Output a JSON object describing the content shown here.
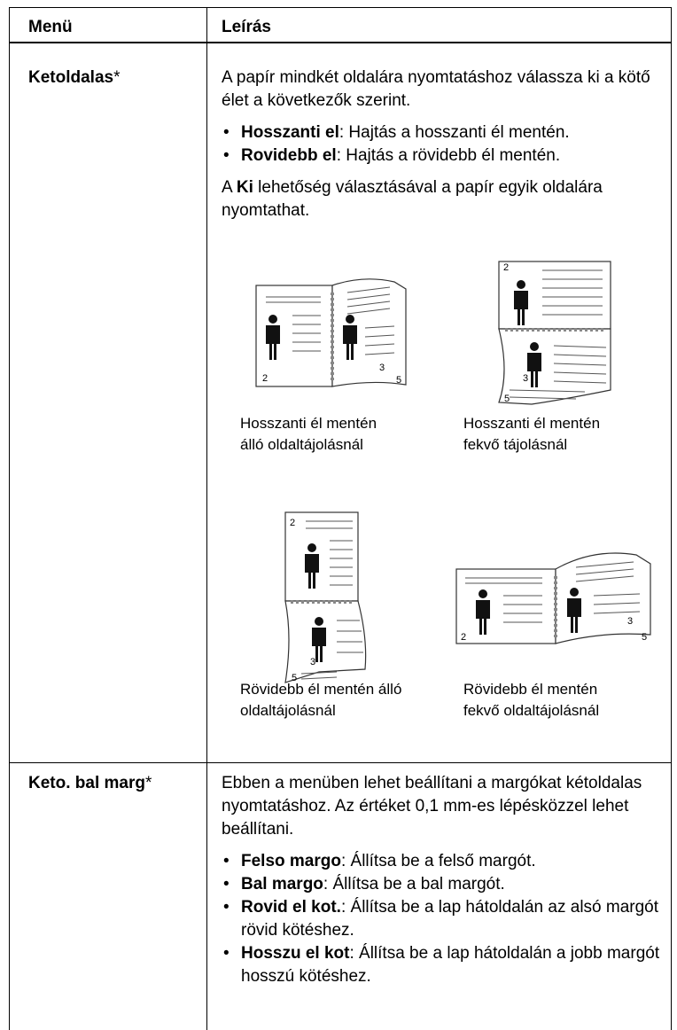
{
  "table": {
    "header": [
      "Menü",
      "Leírás"
    ],
    "rows": [
      {
        "menu": "Ketoldalas",
        "menu_mark": "*",
        "intro": "A papír mindkét oldalára nyomtatáshoz válassza ki a kötő élet a következők szerint.",
        "options": [
          {
            "term": "Hosszanti el",
            "text": ": Hajtás a hosszanti él mentén."
          },
          {
            "term": "Rovidebb el",
            "text": ": Hajtás a rövidebb él mentén."
          }
        ],
        "note": [
          "A ",
          "Ki",
          " lehetőség választásával a papír egyik oldalára nyomtathat."
        ],
        "figures": [
          {
            "caption": "Hosszanti él mentén álló oldaltájolásnál",
            "numbers": [
              "2",
              "3",
              "5"
            ]
          },
          {
            "caption": "Hosszanti él mentén fekvő tájolásnál",
            "numbers": [
              "2",
              "3",
              "5"
            ]
          },
          {
            "caption": "Rövidebb él mentén álló oldaltájolásnál",
            "numbers": [
              "2",
              "3",
              "5"
            ]
          },
          {
            "caption": "Rövidebb él mentén fekvő oldaltájolásnál",
            "numbers": [
              "2",
              "3",
              "5"
            ]
          }
        ]
      },
      {
        "menu": "Keto. bal marg",
        "menu_mark": "*",
        "intro": "Ebben a menüben lehet beállítani a margókat kétoldalas nyomtatáshoz. Az értéket 0,1 mm-es lépésközzel lehet beállítani.",
        "options": [
          {
            "term": "Felso margo",
            "text": ": Állítsa be a felső margót."
          },
          {
            "term": "Bal margo",
            "text": ": Állítsa be a bal margót."
          },
          {
            "term": "Rovid el kot.",
            "text": ": Állítsa be a lap hátoldalán az alsó margót rövid kötéshez."
          },
          {
            "term": "Hosszu el kot",
            "text": ": Állítsa be a lap hátoldalán a jobb margót hosszú kötéshez."
          }
        ]
      }
    ]
  }
}
